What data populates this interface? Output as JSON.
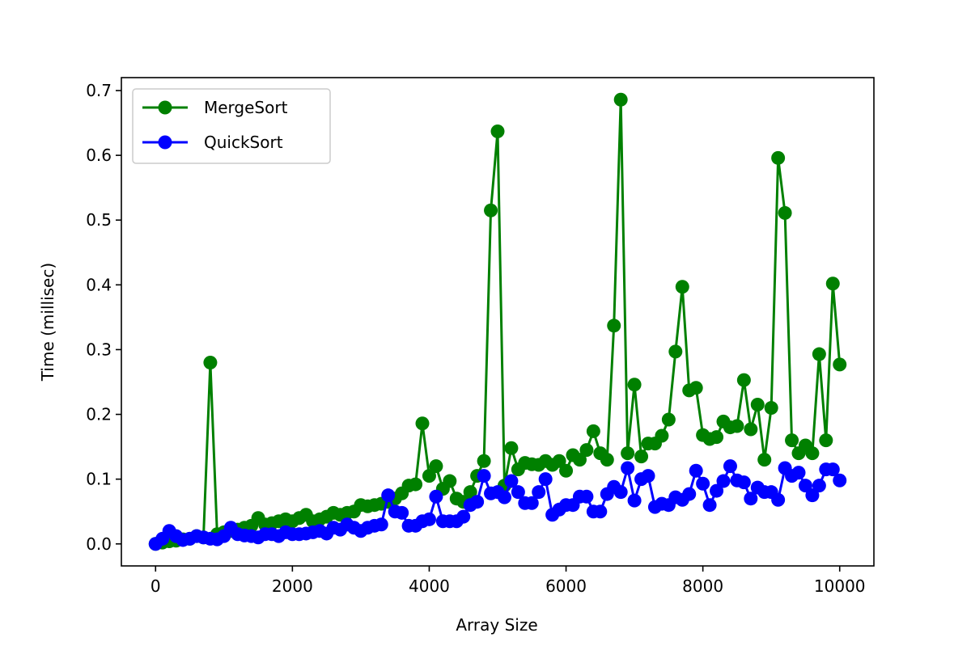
{
  "chart_data": {
    "type": "line",
    "xlabel": "Array Size",
    "ylabel": "Time (millisec)",
    "x": [
      0,
      100,
      200,
      300,
      400,
      500,
      600,
      700,
      800,
      900,
      1000,
      1100,
      1200,
      1300,
      1400,
      1500,
      1600,
      1700,
      1800,
      1900,
      2000,
      2100,
      2200,
      2300,
      2400,
      2500,
      2600,
      2700,
      2800,
      2900,
      3000,
      3100,
      3200,
      3300,
      3400,
      3500,
      3600,
      3700,
      3800,
      3900,
      4000,
      4100,
      4200,
      4300,
      4400,
      4500,
      4600,
      4700,
      4800,
      4900,
      5000,
      5100,
      5200,
      5300,
      5400,
      5500,
      5600,
      5700,
      5800,
      5900,
      6000,
      6100,
      6200,
      6300,
      6400,
      6500,
      6600,
      6700,
      6800,
      6900,
      7000,
      7100,
      7200,
      7300,
      7400,
      7500,
      7600,
      7700,
      7800,
      7900,
      8000,
      8100,
      8200,
      8300,
      8400,
      8500,
      8600,
      8700,
      8800,
      8900,
      9000,
      9100,
      9200,
      9300,
      9400,
      9500,
      9600,
      9700,
      9800,
      9900,
      10000
    ],
    "series": [
      {
        "name": "MergeSort",
        "color": "#008000",
        "values": [
          0.0,
          0.002,
          0.004,
          0.005,
          0.007,
          0.008,
          0.012,
          0.01,
          0.28,
          0.015,
          0.018,
          0.02,
          0.022,
          0.025,
          0.028,
          0.04,
          0.03,
          0.032,
          0.035,
          0.038,
          0.035,
          0.04,
          0.045,
          0.035,
          0.038,
          0.042,
          0.048,
          0.045,
          0.048,
          0.05,
          0.06,
          0.058,
          0.06,
          0.062,
          0.065,
          0.07,
          0.078,
          0.09,
          0.092,
          0.186,
          0.105,
          0.12,
          0.085,
          0.097,
          0.07,
          0.065,
          0.08,
          0.105,
          0.128,
          0.515,
          0.637,
          0.09,
          0.148,
          0.115,
          0.125,
          0.123,
          0.122,
          0.128,
          0.122,
          0.128,
          0.113,
          0.137,
          0.13,
          0.145,
          0.174,
          0.14,
          0.13,
          0.337,
          0.686,
          0.14,
          0.246,
          0.135,
          0.155,
          0.155,
          0.167,
          0.192,
          0.297,
          0.397,
          0.237,
          0.241,
          0.168,
          0.162,
          0.165,
          0.189,
          0.18,
          0.182,
          0.253,
          0.177,
          0.215,
          0.13,
          0.21,
          0.596,
          0.511,
          0.16,
          0.14,
          0.152,
          0.14,
          0.293,
          0.16,
          0.402,
          0.277
        ]
      },
      {
        "name": "QuickSort",
        "color": "#0000ff",
        "values": [
          0.0,
          0.008,
          0.02,
          0.012,
          0.006,
          0.008,
          0.012,
          0.01,
          0.008,
          0.007,
          0.012,
          0.025,
          0.015,
          0.013,
          0.012,
          0.01,
          0.015,
          0.015,
          0.012,
          0.018,
          0.015,
          0.015,
          0.016,
          0.018,
          0.02,
          0.016,
          0.025,
          0.022,
          0.03,
          0.025,
          0.02,
          0.025,
          0.028,
          0.03,
          0.075,
          0.05,
          0.048,
          0.028,
          0.028,
          0.035,
          0.038,
          0.073,
          0.035,
          0.035,
          0.035,
          0.042,
          0.06,
          0.065,
          0.105,
          0.078,
          0.08,
          0.072,
          0.097,
          0.08,
          0.063,
          0.063,
          0.08,
          0.1,
          0.045,
          0.053,
          0.06,
          0.06,
          0.073,
          0.073,
          0.05,
          0.05,
          0.077,
          0.088,
          0.08,
          0.117,
          0.067,
          0.1,
          0.105,
          0.057,
          0.062,
          0.06,
          0.072,
          0.068,
          0.077,
          0.113,
          0.093,
          0.06,
          0.082,
          0.097,
          0.12,
          0.098,
          0.095,
          0.07,
          0.087,
          0.08,
          0.08,
          0.068,
          0.117,
          0.105,
          0.11,
          0.09,
          0.075,
          0.09,
          0.115,
          0.115,
          0.098
        ]
      }
    ],
    "xlim": [
      -500,
      10500
    ],
    "xticks": [
      0,
      2000,
      4000,
      6000,
      8000,
      10000
    ],
    "ylim": [
      -0.034,
      0.72
    ],
    "yticks": [
      {
        "value": 0,
        "label": "0.0"
      },
      0.1,
      0.2,
      0.3,
      0.4,
      0.5,
      0.6,
      0.7
    ],
    "legend": "upper left",
    "grid": false
  }
}
